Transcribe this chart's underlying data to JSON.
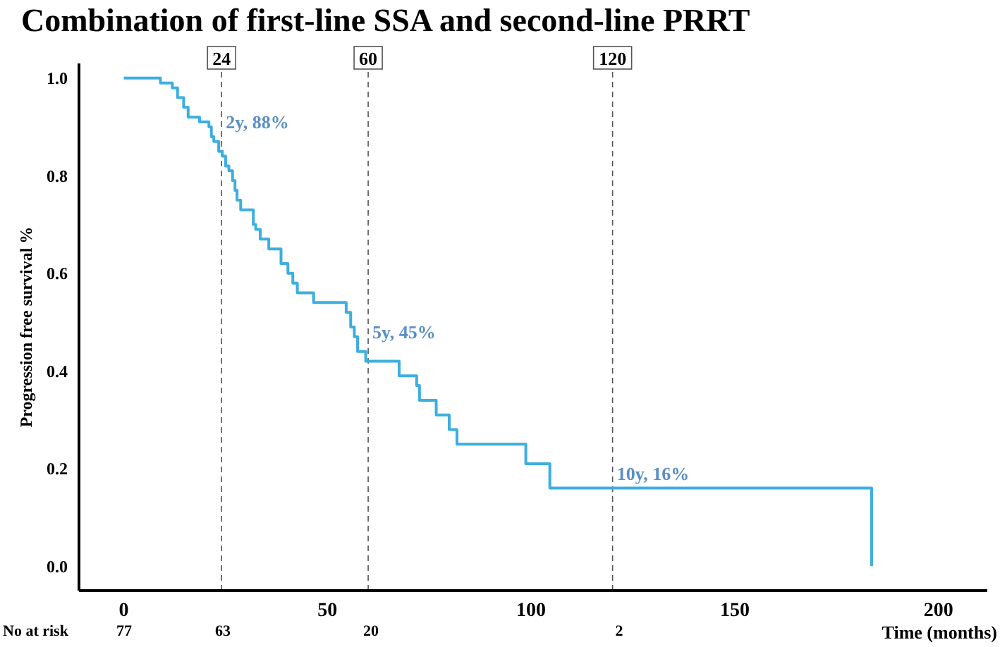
{
  "chart_data": {
    "type": "step",
    "title": "Combination of first-line SSA and second-line PRRT",
    "xlabel": "Time (months)",
    "ylabel": "Progression free survival %",
    "series": [
      {
        "color": "#3daee0",
        "x": [
          0,
          9,
          11.9,
          13.2,
          14.7,
          15.8,
          18.6,
          19.8,
          20.9,
          21.5,
          22.1,
          22.7,
          23.3,
          24.2,
          25,
          25.8,
          26.7,
          27.3,
          27.8,
          28.7,
          31.8,
          32.4,
          33.5,
          35.6,
          38.6,
          40.3,
          41.5,
          42.6,
          46.6,
          54.6,
          55.7,
          56.6,
          57.4,
          59.4,
          67.6,
          71.9,
          72.6,
          76.7,
          79.9,
          81.8,
          98.7,
          104.6,
          183.6
        ],
        "values": [
          1.0,
          0.99,
          0.98,
          0.96,
          0.94,
          0.92,
          0.91,
          0.91,
          0.9,
          0.88,
          0.87,
          0.87,
          0.85,
          0.84,
          0.82,
          0.81,
          0.79,
          0.77,
          0.75,
          0.73,
          0.7,
          0.69,
          0.67,
          0.65,
          0.62,
          0.6,
          0.58,
          0.56,
          0.54,
          0.52,
          0.49,
          0.47,
          0.44,
          0.42,
          0.39,
          0.37,
          0.34,
          0.31,
          0.28,
          0.25,
          0.21,
          0.16,
          0.0
        ]
      }
    ],
    "xlim": [
      -11,
      212
    ],
    "xticks": [
      0,
      50,
      100,
      150,
      200
    ],
    "ylim": [
      -0.05,
      1.03
    ],
    "yticks": [
      {
        "value": 0,
        "label": "0.0"
      },
      {
        "value": 0.2,
        "label": "0.2"
      },
      {
        "value": 0.4,
        "label": "0.4"
      },
      {
        "value": 0.6,
        "label": "0.6"
      },
      {
        "value": 0.8,
        "label": "0.8"
      },
      {
        "value": 1,
        "label": "1.0"
      }
    ],
    "ref_lines": [
      {
        "axis": "x",
        "value": 24,
        "label": "24",
        "color": "#555555",
        "line_style": "dashed"
      },
      {
        "axis": "x",
        "value": 60,
        "label": "60",
        "color": "#555555",
        "line_style": "dashed"
      },
      {
        "axis": "x",
        "value": 120,
        "label": "120",
        "color": "#555555",
        "line_style": "dashed"
      }
    ],
    "annotations": [
      {
        "text": "2y, 88%",
        "x": 24,
        "y": 0.88
      },
      {
        "text": "5y, 45%",
        "x": 60,
        "y": 0.45
      },
      {
        "text": "10y, 16%",
        "x": 120,
        "y": 0.16
      },
      "No at risk",
      "77",
      "63",
      "20",
      "2"
    ],
    "grid": false,
    "legend": false,
    "marker": "none",
    "line_style": "solid"
  }
}
